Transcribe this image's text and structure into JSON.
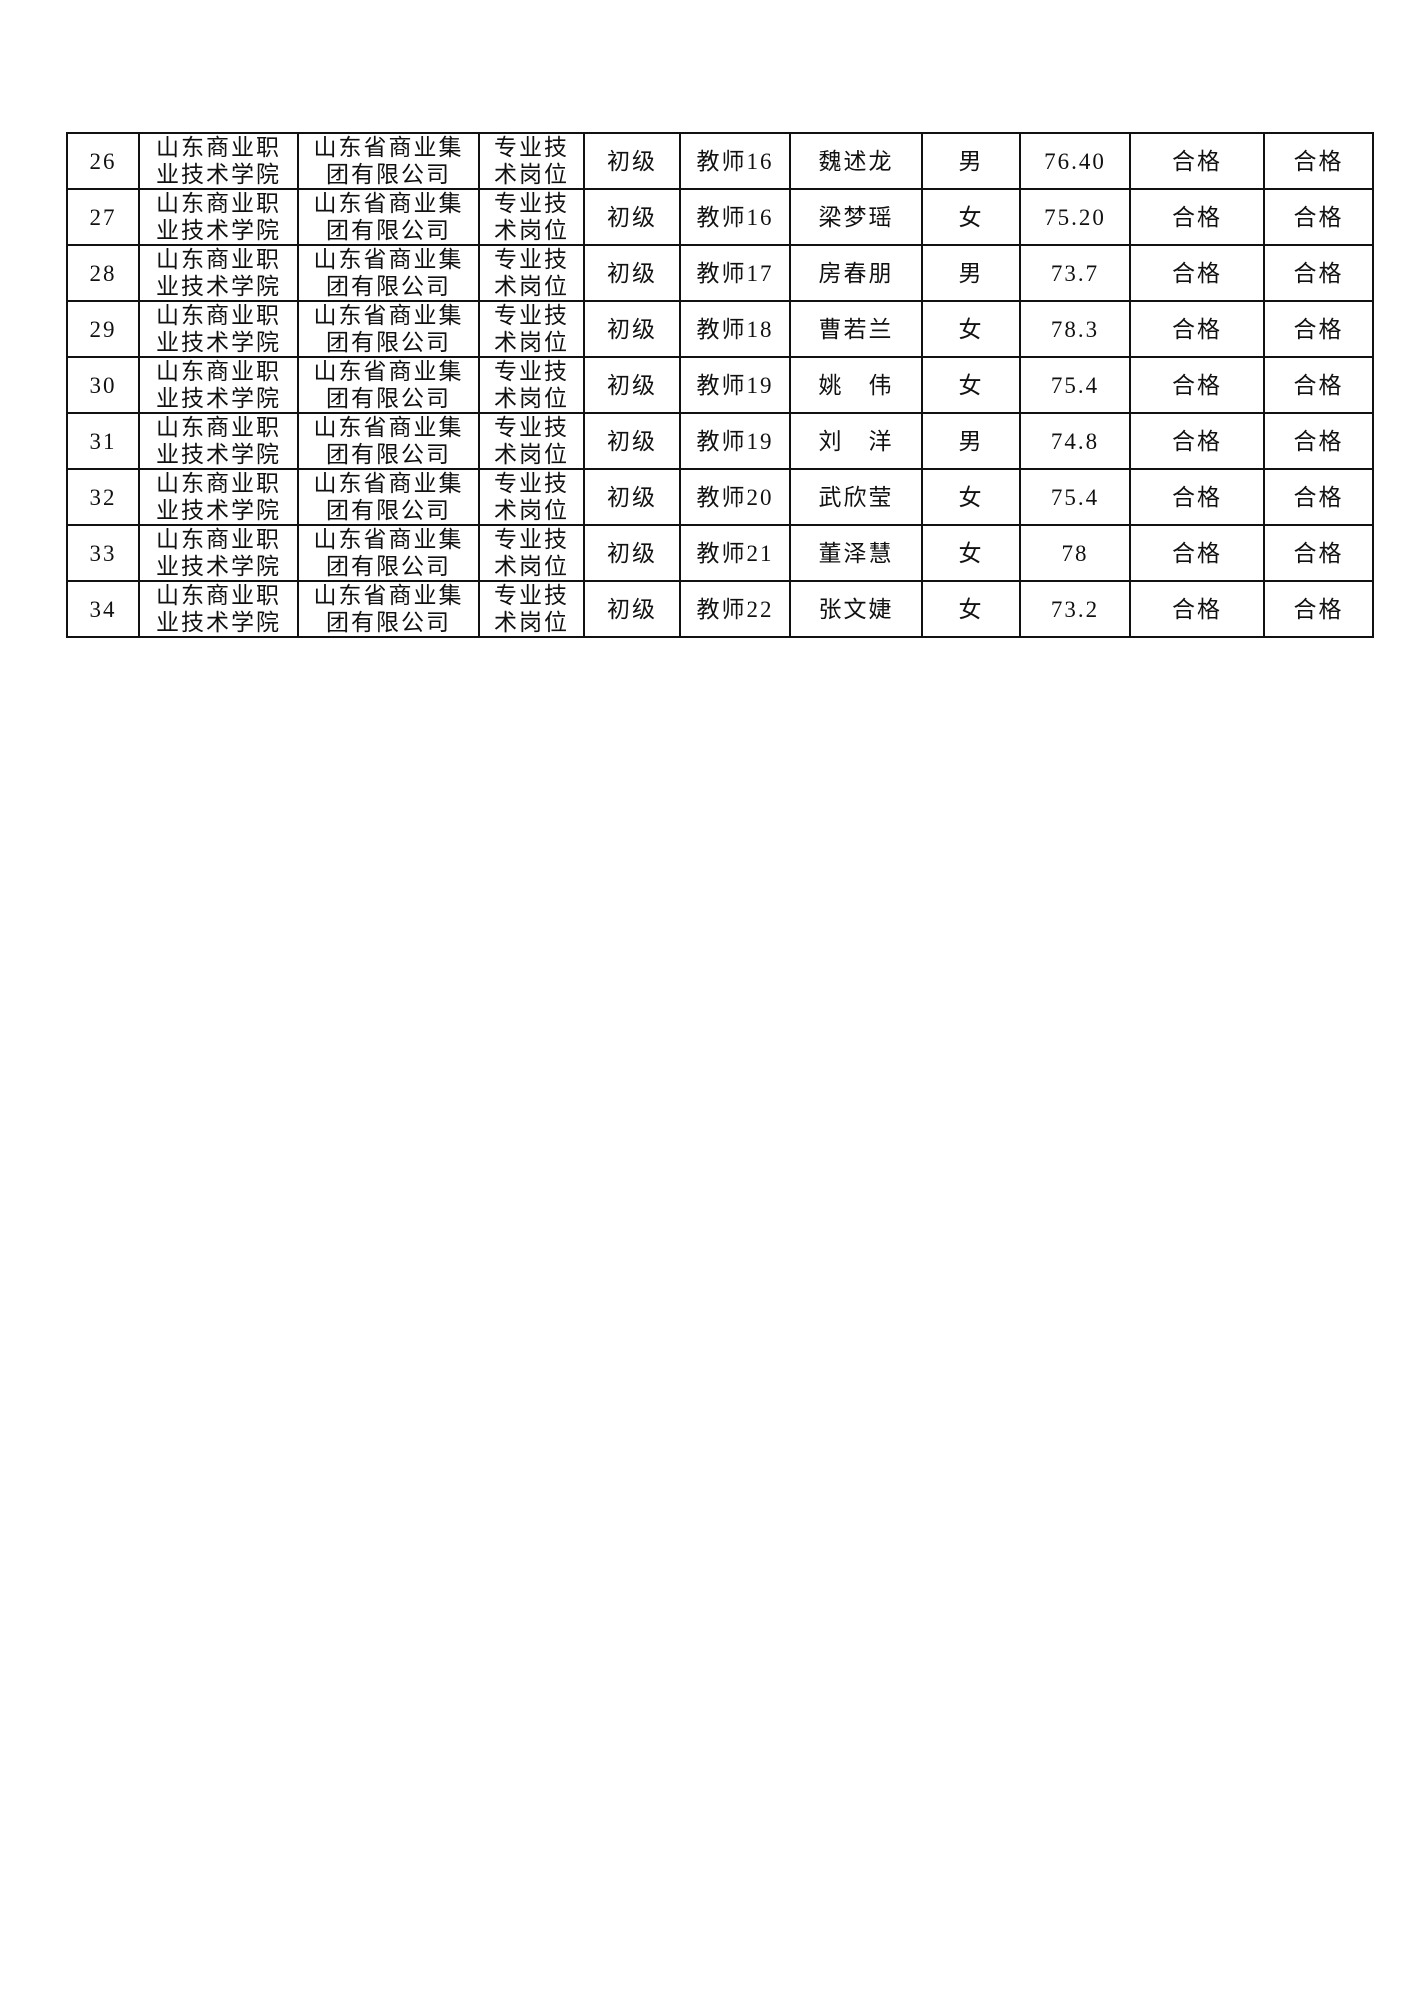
{
  "rows": [
    {
      "no": "26",
      "school": [
        "山东商业职",
        "业技术学院"
      ],
      "employer": [
        "山东省商业集",
        "团有限公司"
      ],
      "post": [
        "专业技",
        "术岗位"
      ],
      "level": "初级",
      "position": "教师16",
      "name": "魏述龙",
      "gender": "男",
      "score": "76.40",
      "result1": "合格",
      "result2": "合格"
    },
    {
      "no": "27",
      "school": [
        "山东商业职",
        "业技术学院"
      ],
      "employer": [
        "山东省商业集",
        "团有限公司"
      ],
      "post": [
        "专业技",
        "术岗位"
      ],
      "level": "初级",
      "position": "教师16",
      "name": "梁梦瑶",
      "gender": "女",
      "score": "75.20",
      "result1": "合格",
      "result2": "合格"
    },
    {
      "no": "28",
      "school": [
        "山东商业职",
        "业技术学院"
      ],
      "employer": [
        "山东省商业集",
        "团有限公司"
      ],
      "post": [
        "专业技",
        "术岗位"
      ],
      "level": "初级",
      "position": "教师17",
      "name": "房春朋",
      "gender": "男",
      "score": "73.7",
      "result1": "合格",
      "result2": "合格"
    },
    {
      "no": "29",
      "school": [
        "山东商业职",
        "业技术学院"
      ],
      "employer": [
        "山东省商业集",
        "团有限公司"
      ],
      "post": [
        "专业技",
        "术岗位"
      ],
      "level": "初级",
      "position": "教师18",
      "name": "曹若兰",
      "gender": "女",
      "score": "78.3",
      "result1": "合格",
      "result2": "合格"
    },
    {
      "no": "30",
      "school": [
        "山东商业职",
        "业技术学院"
      ],
      "employer": [
        "山东省商业集",
        "团有限公司"
      ],
      "post": [
        "专业技",
        "术岗位"
      ],
      "level": "初级",
      "position": "教师19",
      "name": "姚　伟",
      "gender": "女",
      "score": "75.4",
      "result1": "合格",
      "result2": "合格"
    },
    {
      "no": "31",
      "school": [
        "山东商业职",
        "业技术学院"
      ],
      "employer": [
        "山东省商业集",
        "团有限公司"
      ],
      "post": [
        "专业技",
        "术岗位"
      ],
      "level": "初级",
      "position": "教师19",
      "name": "刘　洋",
      "gender": "男",
      "score": "74.8",
      "result1": "合格",
      "result2": "合格"
    },
    {
      "no": "32",
      "school": [
        "山东商业职",
        "业技术学院"
      ],
      "employer": [
        "山东省商业集",
        "团有限公司"
      ],
      "post": [
        "专业技",
        "术岗位"
      ],
      "level": "初级",
      "position": "教师20",
      "name": "武欣莹",
      "gender": "女",
      "score": "75.4",
      "result1": "合格",
      "result2": "合格"
    },
    {
      "no": "33",
      "school": [
        "山东商业职",
        "业技术学院"
      ],
      "employer": [
        "山东省商业集",
        "团有限公司"
      ],
      "post": [
        "专业技",
        "术岗位"
      ],
      "level": "初级",
      "position": "教师21",
      "name": "董泽慧",
      "gender": "女",
      "score": "78",
      "result1": "合格",
      "result2": "合格"
    },
    {
      "no": "34",
      "school": [
        "山东商业职",
        "业技术学院"
      ],
      "employer": [
        "山东省商业集",
        "团有限公司"
      ],
      "post": [
        "专业技",
        "术岗位"
      ],
      "level": "初级",
      "position": "教师22",
      "name": "张文婕",
      "gender": "女",
      "score": "73.2",
      "result1": "合格",
      "result2": "合格"
    }
  ]
}
